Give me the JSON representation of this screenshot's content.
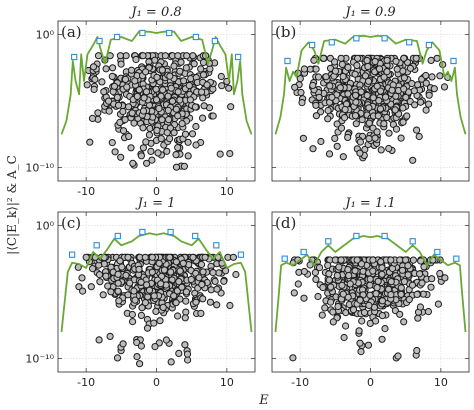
{
  "figure": {
    "xlabel": "E",
    "ylabel": "|⟨C|E_k⟩|² & A_C",
    "colors": {
      "line": "#6aa834",
      "squares": "#2e8fd6",
      "dots": "#bdbdbd"
    }
  },
  "chart_data": [
    {
      "type": "scatter",
      "panel": "(a)",
      "title": "J₁ = 0.8",
      "xlim": [
        -14,
        14
      ],
      "ylim_log10": [
        -11,
        1
      ],
      "yscale": "log",
      "xticks": [
        -10,
        0,
        10
      ],
      "xtick_labels": [
        "-10",
        "0",
        "10"
      ],
      "yticks_log10": [
        0,
        -10
      ],
      "ytick_labels": [
        "10⁰",
        "10⁻¹⁰"
      ],
      "grid": true,
      "squares": [
        [
          -11.7,
          -1.7
        ],
        [
          -8.1,
          -0.5
        ],
        [
          -5.6,
          -0.2
        ],
        [
          -2.0,
          0.1
        ],
        [
          1.8,
          0.1
        ],
        [
          5.6,
          -0.2
        ],
        [
          8.3,
          -0.5
        ],
        [
          11.6,
          -1.7
        ]
      ],
      "curve": [
        [
          -13.5,
          -7.5
        ],
        [
          -12.8,
          -6.5
        ],
        [
          -12.2,
          -4.5
        ],
        [
          -11.9,
          -2.0
        ],
        [
          -11.5,
          -3.5
        ],
        [
          -11.0,
          -4.5
        ],
        [
          -10.7,
          -1.5
        ],
        [
          -10.3,
          -3.5
        ],
        [
          -9.8,
          -1.5
        ],
        [
          -9.0,
          -0.8
        ],
        [
          -8.4,
          -0.2
        ],
        [
          -7.9,
          -1.2
        ],
        [
          -7.3,
          -2.2
        ],
        [
          -6.5,
          -0.4
        ],
        [
          -5.0,
          -0.2
        ],
        [
          -3.5,
          -0.5
        ],
        [
          -2.5,
          0.2
        ],
        [
          -1.0,
          0.2
        ],
        [
          0,
          0.1
        ],
        [
          1.0,
          0.2
        ],
        [
          2.5,
          0.2
        ],
        [
          3.5,
          -0.5
        ],
        [
          5.0,
          -0.2
        ],
        [
          6.5,
          -0.4
        ],
        [
          7.3,
          -2.2
        ],
        [
          7.9,
          -1.2
        ],
        [
          8.4,
          -0.2
        ],
        [
          9.0,
          -0.8
        ],
        [
          9.8,
          -1.5
        ],
        [
          10.3,
          -3.5
        ],
        [
          10.7,
          -1.5
        ],
        [
          11.0,
          -4.5
        ],
        [
          11.5,
          -3.5
        ],
        [
          11.9,
          -2.0
        ],
        [
          12.2,
          -4.5
        ],
        [
          12.8,
          -6.5
        ],
        [
          13.5,
          -7.5
        ]
      ],
      "cloud": {
        "count": 520,
        "x_sigma": 4.3,
        "x_max": 11.0,
        "y_center": -4.6,
        "y_spread": 1.8,
        "y_floor": -10.0,
        "y_ceiling": -1.6
      }
    },
    {
      "type": "scatter",
      "panel": "(b)",
      "title": "J₁ = 0.9",
      "xlim": [
        -14,
        14
      ],
      "ylim_log10": [
        -11,
        1
      ],
      "yscale": "log",
      "xticks": [
        -10,
        0,
        10
      ],
      "xtick_labels": [
        "",
        "",
        ""
      ],
      "yticks_log10": [
        0,
        -10
      ],
      "ytick_labels": [
        "",
        ""
      ],
      "grid": true,
      "squares": [
        [
          -11.8,
          -2.0
        ],
        [
          -8.3,
          -0.8
        ],
        [
          -5.5,
          -0.6
        ],
        [
          -2.0,
          -0.3
        ],
        [
          2.0,
          -0.3
        ],
        [
          5.5,
          -0.6
        ],
        [
          8.3,
          -0.8
        ],
        [
          11.8,
          -2.0
        ]
      ],
      "curve": [
        [
          -13.5,
          -7.5
        ],
        [
          -12.8,
          -6.2
        ],
        [
          -12.3,
          -4.5
        ],
        [
          -12.0,
          -2.5
        ],
        [
          -11.5,
          -3.5
        ],
        [
          -11.0,
          -2.8
        ],
        [
          -10.5,
          -3.2
        ],
        [
          -9.8,
          -1.2
        ],
        [
          -8.8,
          -0.6
        ],
        [
          -8.0,
          -1.2
        ],
        [
          -7.4,
          -2.2
        ],
        [
          -6.6,
          -0.5
        ],
        [
          -5.0,
          -0.4
        ],
        [
          -3.6,
          -0.7
        ],
        [
          -2.5,
          -0.2
        ],
        [
          -1.0,
          -0.1
        ],
        [
          0,
          -0.2
        ],
        [
          1.0,
          -0.1
        ],
        [
          2.5,
          -0.2
        ],
        [
          3.6,
          -0.7
        ],
        [
          5.0,
          -0.4
        ],
        [
          6.6,
          -0.5
        ],
        [
          7.4,
          -2.2
        ],
        [
          8.0,
          -1.2
        ],
        [
          8.8,
          -0.6
        ],
        [
          9.8,
          -1.2
        ],
        [
          10.5,
          -3.2
        ],
        [
          11.0,
          -2.8
        ],
        [
          11.5,
          -3.5
        ],
        [
          12.0,
          -2.5
        ],
        [
          12.3,
          -4.5
        ],
        [
          12.8,
          -6.2
        ],
        [
          13.5,
          -7.5
        ]
      ],
      "cloud": {
        "count": 520,
        "x_sigma": 4.5,
        "x_max": 11.0,
        "y_center": -4.4,
        "y_spread": 1.7,
        "y_floor": -9.5,
        "y_ceiling": -1.8
      }
    },
    {
      "type": "scatter",
      "panel": "(c)",
      "title": "J₁ = 1",
      "xlim": [
        -14,
        14
      ],
      "ylim_log10": [
        -11,
        1
      ],
      "yscale": "log",
      "xticks": [
        -10,
        0,
        10
      ],
      "xtick_labels": [
        "-10",
        "0",
        "10"
      ],
      "yticks_log10": [
        0,
        -10
      ],
      "ytick_labels": [
        "10⁰",
        "10⁻¹⁰"
      ],
      "grid": true,
      "squares": [
        [
          -12.0,
          -2.2
        ],
        [
          -8.5,
          -1.5
        ],
        [
          -5.5,
          -0.8
        ],
        [
          -2.0,
          -0.5
        ],
        [
          2.0,
          -0.5
        ],
        [
          5.5,
          -0.8
        ],
        [
          8.5,
          -1.5
        ],
        [
          12.0,
          -2.2
        ]
      ],
      "curve": [
        [
          -13.5,
          -8.0
        ],
        [
          -13.0,
          -5.5
        ],
        [
          -12.6,
          -3.5
        ],
        [
          -12.0,
          -2.8
        ],
        [
          -11.0,
          -2.9
        ],
        [
          -10.0,
          -3.2
        ],
        [
          -9.0,
          -2.0
        ],
        [
          -8.0,
          -2.5
        ],
        [
          -7.0,
          -1.8
        ],
        [
          -6.0,
          -1.0
        ],
        [
          -5.0,
          -1.5
        ],
        [
          -3.5,
          -1.2
        ],
        [
          -2.5,
          -0.8
        ],
        [
          -1.0,
          -0.6
        ],
        [
          0,
          -0.7
        ],
        [
          1.0,
          -0.6
        ],
        [
          2.5,
          -0.8
        ],
        [
          3.5,
          -1.2
        ],
        [
          5.0,
          -1.5
        ],
        [
          6.0,
          -1.0
        ],
        [
          7.0,
          -1.8
        ],
        [
          8.0,
          -2.5
        ],
        [
          9.0,
          -2.0
        ],
        [
          10.0,
          -3.2
        ],
        [
          11.0,
          -2.9
        ],
        [
          12.0,
          -2.8
        ],
        [
          12.6,
          -3.5
        ],
        [
          13.0,
          -5.5
        ],
        [
          13.5,
          -8.0
        ]
      ],
      "cloud": {
        "count": 480,
        "x_sigma": 4.8,
        "x_max": 11.5,
        "y_center": -4.0,
        "y_spread": 1.5,
        "y_floor": -10.5,
        "y_ceiling": -2.4
      }
    },
    {
      "type": "scatter",
      "panel": "(d)",
      "title": "J₁ = 1.1",
      "xlim": [
        -14,
        14
      ],
      "ylim_log10": [
        -11,
        1
      ],
      "yscale": "log",
      "xticks": [
        -10,
        0,
        10
      ],
      "xtick_labels": [
        "-10",
        "0",
        "10"
      ],
      "yticks_log10": [
        0,
        -10
      ],
      "ytick_labels": [
        "",
        ""
      ],
      "grid": true,
      "squares": [
        [
          -12.2,
          -2.5
        ],
        [
          -9.5,
          -2.0
        ],
        [
          -6.0,
          -1.2
        ],
        [
          -2.0,
          -0.8
        ],
        [
          2.0,
          -0.8
        ],
        [
          6.0,
          -1.2
        ],
        [
          9.5,
          -2.0
        ],
        [
          12.2,
          -2.5
        ]
      ],
      "curve": [
        [
          -13.5,
          -8.0
        ],
        [
          -13.0,
          -5.0
        ],
        [
          -12.7,
          -3.0
        ],
        [
          -12.0,
          -2.8
        ],
        [
          -11.0,
          -3.0
        ],
        [
          -10.0,
          -2.6
        ],
        [
          -9.0,
          -2.2
        ],
        [
          -8.0,
          -3.0
        ],
        [
          -7.0,
          -2.0
        ],
        [
          -6.0,
          -1.5
        ],
        [
          -5.0,
          -2.0
        ],
        [
          -3.5,
          -1.4
        ],
        [
          -2.5,
          -1.0
        ],
        [
          -1.0,
          -0.8
        ],
        [
          0,
          -0.9
        ],
        [
          1.0,
          -0.8
        ],
        [
          2.5,
          -1.0
        ],
        [
          3.5,
          -1.4
        ],
        [
          5.0,
          -2.0
        ],
        [
          6.0,
          -1.5
        ],
        [
          7.0,
          -2.0
        ],
        [
          8.0,
          -3.0
        ],
        [
          9.0,
          -2.2
        ],
        [
          10.0,
          -2.6
        ],
        [
          11.0,
          -3.0
        ],
        [
          12.0,
          -2.8
        ],
        [
          12.7,
          -3.0
        ],
        [
          13.0,
          -5.0
        ],
        [
          13.5,
          -8.0
        ]
      ],
      "cloud": {
        "count": 480,
        "x_sigma": 4.6,
        "x_max": 11.5,
        "y_center": -4.3,
        "y_spread": 1.6,
        "y_floor": -10.0,
        "y_ceiling": -2.6
      }
    }
  ]
}
